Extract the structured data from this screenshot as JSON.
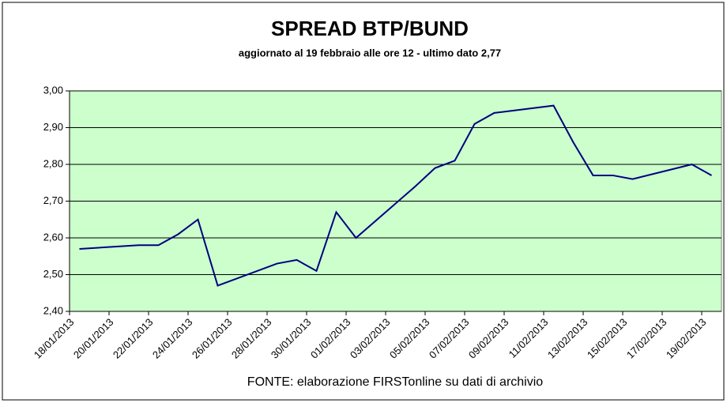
{
  "chart_data": {
    "type": "line",
    "title": "SPREAD  BTP/BUND",
    "subtitle": "aggiornato al 19 febbraio alle ore 12 - ultimo dato 2,77",
    "source": "FONTE: elaborazione FIRSTonline su dati di archivio",
    "x": [
      "18/01/2013",
      "21/01/2013",
      "22/01/2013",
      "23/01/2013",
      "24/01/2013",
      "25/01/2013",
      "28/01/2013",
      "29/01/2013",
      "30/01/2013",
      "31/01/2013",
      "01/02/2013",
      "04/02/2013",
      "05/02/2013",
      "06/02/2013",
      "07/02/2013",
      "08/02/2013",
      "11/02/2013",
      "12/02/2013",
      "13/02/2013",
      "14/02/2013",
      "15/02/2013",
      "18/02/2013",
      "19/02/2013"
    ],
    "series": [
      {
        "name": "Spread BTP/Bund",
        "color": "#000080",
        "values": [
          2.57,
          2.58,
          2.58,
          2.61,
          2.65,
          2.47,
          2.53,
          2.54,
          2.51,
          2.67,
          2.6,
          2.74,
          2.79,
          2.81,
          2.91,
          2.94,
          2.96,
          2.86,
          2.77,
          2.77,
          2.76,
          2.8,
          2.77
        ]
      }
    ],
    "xlim": [
      "18/01/2013",
      "20/02/2013"
    ],
    "xticks": [
      "18/01/2013",
      "20/01/2013",
      "22/01/2013",
      "24/01/2013",
      "26/01/2013",
      "28/01/2013",
      "30/01/2013",
      "01/02/2013",
      "03/02/2013",
      "05/02/2013",
      "07/02/2013",
      "09/02/2013",
      "11/02/2013",
      "13/02/2013",
      "15/02/2013",
      "17/02/2013",
      "19/02/2013"
    ],
    "ylim": [
      2.4,
      3.0
    ],
    "yticks": [
      {
        "value": 2.4,
        "label": "2,40"
      },
      {
        "value": 2.5,
        "label": "2,50"
      },
      {
        "value": 2.6,
        "label": "2,60"
      },
      {
        "value": 2.7,
        "label": "2,70"
      },
      {
        "value": 2.8,
        "label": "2,80"
      },
      {
        "value": 2.9,
        "label": "2,90"
      },
      {
        "value": 3.0,
        "label": "3,00"
      }
    ],
    "grid": true,
    "plot_background": "#ccffcc"
  }
}
